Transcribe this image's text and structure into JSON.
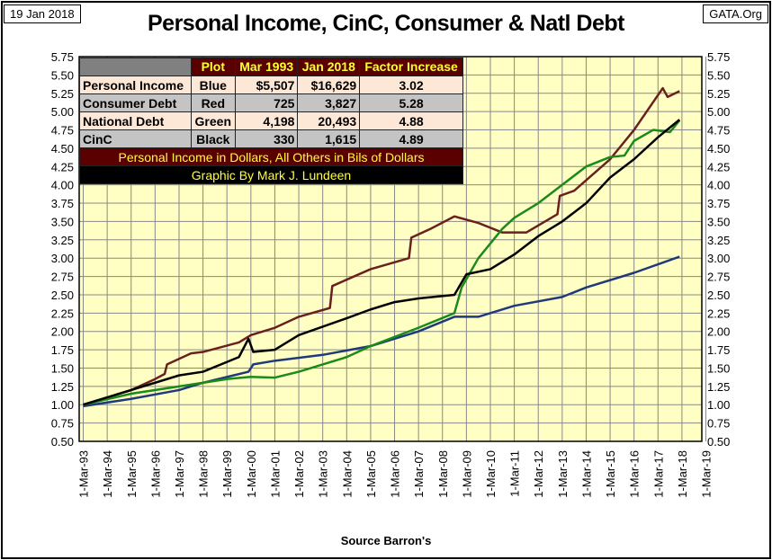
{
  "header": {
    "date": "19 Jan 2018",
    "site": "GATA.Org",
    "source": "Source Barron's"
  },
  "table": {
    "headers": [
      "",
      "Plot",
      "Mar 1993",
      "Jan 2018",
      "Factor Increase"
    ],
    "rows": [
      {
        "name": "Personal Income",
        "plot": "Blue",
        "mar1993": "$5,507",
        "jan2018": "$16,629",
        "factor": "3.02"
      },
      {
        "name": "Consumer Debt",
        "plot": "Red",
        "mar1993": "725",
        "jan2018": "3,827",
        "factor": "5.28"
      },
      {
        "name": "National Debt",
        "plot": "Green",
        "mar1993": "4,198",
        "jan2018": "20,493",
        "factor": "4.88"
      },
      {
        "name": "CinC",
        "plot": "Black",
        "mar1993": "330",
        "jan2018": "1,615",
        "factor": "4.89"
      }
    ],
    "note": "Personal Income in Dollars, All Others in Bils of Dollars",
    "credit": "Graphic By Mark J. Lundeen"
  },
  "chart_data": {
    "type": "line",
    "title": "Personal Income, CinC, Consumer & Natl Debt",
    "xlabel": "",
    "ylabel": "",
    "ylim": [
      0.5,
      5.75
    ],
    "ytick_step": 0.25,
    "xlim": [
      1993,
      2019
    ],
    "xtick_labels": [
      "1-Mar-93",
      "1-Mar-94",
      "1-Mar-95",
      "1-Mar-96",
      "1-Mar-97",
      "1-Mar-98",
      "1-Mar-99",
      "1-Mar-00",
      "1-Mar-01",
      "1-Mar-02",
      "1-Mar-03",
      "1-Mar-04",
      "1-Mar-05",
      "1-Mar-06",
      "1-Mar-07",
      "1-Mar-08",
      "1-Mar-09",
      "1-Mar-10",
      "1-Mar-11",
      "1-Mar-12",
      "1-Mar-13",
      "1-Mar-14",
      "1-Mar-15",
      "1-Mar-16",
      "1-Mar-17",
      "1-Mar-18",
      "1-Mar-19"
    ],
    "grid": true,
    "series": [
      {
        "name": "Personal Income",
        "color": "#1f3a7a",
        "points": [
          [
            1993,
            0.98
          ],
          [
            1995,
            1.08
          ],
          [
            1997,
            1.2
          ],
          [
            1998,
            1.3
          ],
          [
            1999.9,
            1.45
          ],
          [
            2000.1,
            1.55
          ],
          [
            2001,
            1.6
          ],
          [
            2003,
            1.68
          ],
          [
            2005,
            1.8
          ],
          [
            2007,
            2.0
          ],
          [
            2008.5,
            2.2
          ],
          [
            2009.5,
            2.2
          ],
          [
            2011,
            2.35
          ],
          [
            2013,
            2.47
          ],
          [
            2014,
            2.6
          ],
          [
            2016,
            2.8
          ],
          [
            2017.9,
            3.02
          ]
        ]
      },
      {
        "name": "Consumer Debt",
        "color": "#6b2020",
        "points": [
          [
            1993,
            1.0
          ],
          [
            1995,
            1.2
          ],
          [
            1996,
            1.35
          ],
          [
            1996.4,
            1.42
          ],
          [
            1996.5,
            1.55
          ],
          [
            1997.5,
            1.7
          ],
          [
            1998,
            1.72
          ],
          [
            1999.5,
            1.85
          ],
          [
            2000,
            1.95
          ],
          [
            2001,
            2.05
          ],
          [
            2002,
            2.2
          ],
          [
            2003.3,
            2.32
          ],
          [
            2003.4,
            2.62
          ],
          [
            2005,
            2.85
          ],
          [
            2006.6,
            3.0
          ],
          [
            2006.7,
            3.28
          ],
          [
            2007.5,
            3.4
          ],
          [
            2008.5,
            3.57
          ],
          [
            2009.5,
            3.48
          ],
          [
            2010.5,
            3.35
          ],
          [
            2011.5,
            3.35
          ],
          [
            2012.8,
            3.6
          ],
          [
            2012.9,
            3.85
          ],
          [
            2013.5,
            3.92
          ],
          [
            2015,
            4.35
          ],
          [
            2016,
            4.75
          ],
          [
            2017.2,
            5.32
          ],
          [
            2017.4,
            5.2
          ],
          [
            2017.9,
            5.28
          ]
        ]
      },
      {
        "name": "National Debt",
        "color": "#1a8a1a",
        "points": [
          [
            1993,
            1.0
          ],
          [
            1995,
            1.15
          ],
          [
            1997,
            1.25
          ],
          [
            1999,
            1.35
          ],
          [
            2000,
            1.38
          ],
          [
            2001,
            1.37
          ],
          [
            2002,
            1.45
          ],
          [
            2004,
            1.65
          ],
          [
            2005,
            1.8
          ],
          [
            2007,
            2.05
          ],
          [
            2008.5,
            2.25
          ],
          [
            2008.8,
            2.6
          ],
          [
            2009.5,
            3.0
          ],
          [
            2010.5,
            3.4
          ],
          [
            2011,
            3.55
          ],
          [
            2012,
            3.75
          ],
          [
            2013,
            4.0
          ],
          [
            2014,
            4.25
          ],
          [
            2015,
            4.38
          ],
          [
            2015.6,
            4.4
          ],
          [
            2016,
            4.6
          ],
          [
            2016.8,
            4.75
          ],
          [
            2017.5,
            4.72
          ],
          [
            2017.9,
            4.88
          ]
        ]
      },
      {
        "name": "CinC",
        "color": "#000000",
        "points": [
          [
            1993,
            1.0
          ],
          [
            1995,
            1.2
          ],
          [
            1997,
            1.4
          ],
          [
            1998,
            1.45
          ],
          [
            1999.5,
            1.65
          ],
          [
            1999.9,
            1.9
          ],
          [
            2000.1,
            1.72
          ],
          [
            2001,
            1.75
          ],
          [
            2002,
            1.95
          ],
          [
            2004,
            2.18
          ],
          [
            2005,
            2.3
          ],
          [
            2006,
            2.4
          ],
          [
            2007,
            2.45
          ],
          [
            2008.5,
            2.5
          ],
          [
            2009,
            2.78
          ],
          [
            2010,
            2.85
          ],
          [
            2011,
            3.05
          ],
          [
            2012,
            3.3
          ],
          [
            2013,
            3.5
          ],
          [
            2014,
            3.75
          ],
          [
            2015,
            4.1
          ],
          [
            2016,
            4.35
          ],
          [
            2017,
            4.65
          ],
          [
            2017.9,
            4.89
          ]
        ]
      }
    ]
  }
}
